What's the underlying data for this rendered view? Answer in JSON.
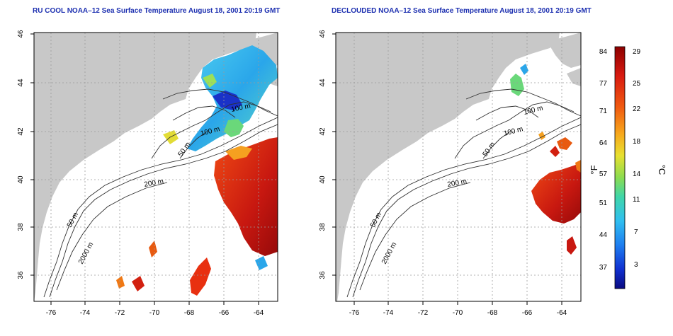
{
  "titles": {
    "left": "RU COOL NOAA–12 Sea Surface Temperature August 18, 2001 20:19 GMT",
    "right": "DECLOUDED NOAA–12 Sea Surface Temperature August 18, 2001 20:19 GMT"
  },
  "axes": {
    "lon_ticks": [
      "-76",
      "-74",
      "-72",
      "-70",
      "-68",
      "-66",
      "-64"
    ],
    "lat_ticks": [
      "36",
      "38",
      "40",
      "42",
      "44",
      "46"
    ]
  },
  "contours": {
    "c100": "100 m",
    "c50": "50 m",
    "c200": "200 m",
    "c2000": "2000 m"
  },
  "colorbar": {
    "f_ticks": [
      "84",
      "77",
      "71",
      "64",
      "57",
      "51",
      "44",
      "37"
    ],
    "c_ticks": [
      "29",
      "25",
      "22",
      "18",
      "14",
      "11",
      "7",
      "3"
    ],
    "f_unit": "°F",
    "c_unit": "°C"
  },
  "colors": {
    "land": "#c8c8c8",
    "ocean": "#ffffff",
    "title": "#1c2fb0",
    "warm": "#c0160f",
    "cool": "#27b4e6"
  }
}
